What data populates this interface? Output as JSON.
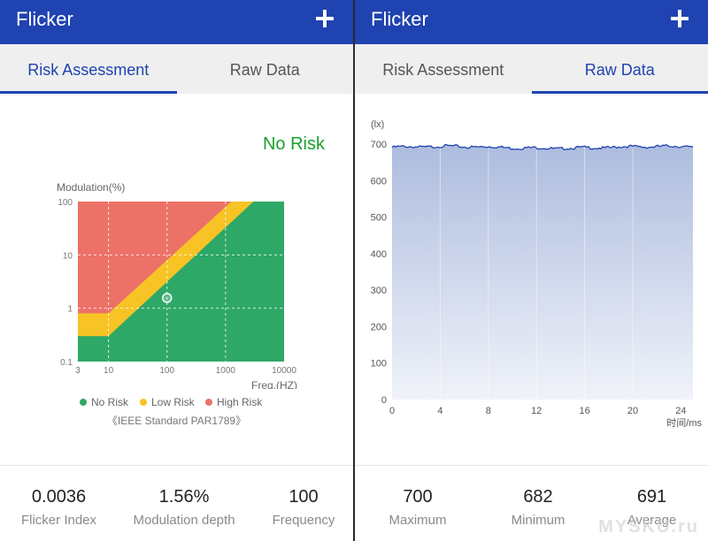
{
  "colors": {
    "appbar": "#1f43b0",
    "no_risk": "#2ea867",
    "low_risk": "#f7c325",
    "high_risk": "#ec7167",
    "status_text": "#19a02c",
    "raw_line": "#1f43b0",
    "raw_fill": "#a9b9dd"
  },
  "left": {
    "title": "Flicker",
    "add_icon": "plus-icon",
    "tabs": [
      {
        "label": "Risk Assessment",
        "active": true
      },
      {
        "label": "Raw Data",
        "active": false
      }
    ],
    "status": "No Risk",
    "legend": [
      {
        "label": "No Risk"
      },
      {
        "label": "Low Risk"
      },
      {
        "label": "High Risk"
      }
    ],
    "standard_note": "《IEEE Standard PAR1789》",
    "stats": [
      {
        "value": "0.0036",
        "label": "Flicker Index"
      },
      {
        "value": "1.56%",
        "label": "Modulation depth"
      },
      {
        "value": "100",
        "label": "Frequency"
      }
    ]
  },
  "right": {
    "title": "Flicker",
    "add_icon": "plus-icon",
    "tabs": [
      {
        "label": "Risk Assessment",
        "active": false
      },
      {
        "label": "Raw Data",
        "active": true
      }
    ],
    "stats": [
      {
        "value": "700",
        "label": "Maximum"
      },
      {
        "value": "682",
        "label": "Minimum"
      },
      {
        "value": "691",
        "label": "Average"
      }
    ]
  },
  "watermark": "MYSKU.ru",
  "chart_data": [
    {
      "type": "area",
      "xlabel": "Freq.(HZ)",
      "ylabel": "Modulation(%)",
      "x_scale": "log",
      "y_scale": "log",
      "xlim": [
        3,
        10000
      ],
      "ylim": [
        0.1,
        100
      ],
      "x_ticks": [
        "3",
        "10",
        "100",
        "1000",
        "10000"
      ],
      "y_ticks": [
        "100",
        "10",
        "1",
        "0.1"
      ],
      "grid": true,
      "legend": "bottom",
      "regions": [
        {
          "name": "No Risk",
          "boundary": [
            [
              3,
              0.3
            ],
            [
              10,
              0.3
            ],
            [
              3000,
              100
            ]
          ]
        },
        {
          "name": "Low Risk",
          "boundary": [
            [
              3,
              0.8
            ],
            [
              10,
              0.8
            ],
            [
              1250,
              100
            ]
          ]
        },
        {
          "name": "High Risk"
        }
      ],
      "point": {
        "x": 100,
        "y": 1.56
      }
    },
    {
      "type": "line",
      "ylabel": "(lx)",
      "xlabel": "时间/ms",
      "xlim": [
        0,
        25
      ],
      "ylim": [
        0,
        700
      ],
      "x_ticks": [
        0,
        4,
        8,
        12,
        16,
        20,
        24
      ],
      "y_ticks": [
        0,
        100,
        200,
        300,
        400,
        500,
        600,
        700
      ],
      "series": [
        {
          "min": 682,
          "max": 700,
          "mean": 691
        }
      ]
    }
  ]
}
